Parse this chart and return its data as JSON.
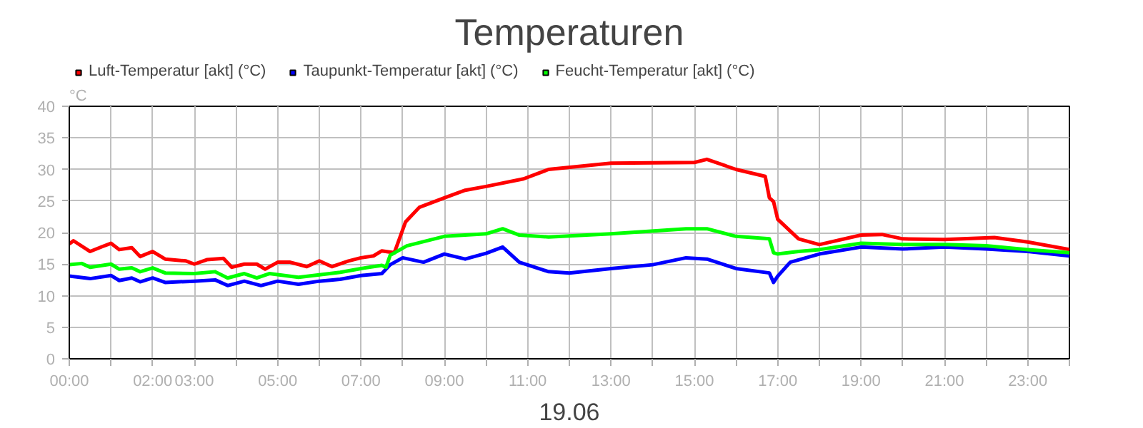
{
  "chart_data": {
    "type": "line",
    "title": "Temperaturen",
    "ylabel": "°C",
    "xlabel": "19.06",
    "xlim": [
      0,
      24
    ],
    "ylim": [
      0,
      40
    ],
    "xticks": [
      {
        "value": 0,
        "label": "00:00"
      },
      {
        "value": 1,
        "label": null
      },
      {
        "value": 2,
        "label": "02:00"
      },
      {
        "value": 3,
        "label": "03:00"
      },
      {
        "value": 4,
        "label": null
      },
      {
        "value": 5,
        "label": "05:00"
      },
      {
        "value": 6,
        "label": null
      },
      {
        "value": 7,
        "label": "07:00"
      },
      {
        "value": 8,
        "label": null
      },
      {
        "value": 9,
        "label": "09:00"
      },
      {
        "value": 10,
        "label": null
      },
      {
        "value": 11,
        "label": "11:00"
      },
      {
        "value": 12,
        "label": null
      },
      {
        "value": 13,
        "label": "13:00"
      },
      {
        "value": 14,
        "label": null
      },
      {
        "value": 15,
        "label": "15:00"
      },
      {
        "value": 16,
        "label": null
      },
      {
        "value": 17,
        "label": "17:00"
      },
      {
        "value": 18,
        "label": null
      },
      {
        "value": 19,
        "label": "19:00"
      },
      {
        "value": 20,
        "label": null
      },
      {
        "value": 21,
        "label": "21:00"
      },
      {
        "value": 22,
        "label": null
      },
      {
        "value": 23,
        "label": "23:00"
      },
      {
        "value": 24,
        "label": null
      }
    ],
    "yticks": [
      0,
      5,
      10,
      15,
      20,
      25,
      30,
      35,
      40
    ],
    "grid": true,
    "legend": "top left",
    "marker": "none",
    "line_style": "solid",
    "series": [
      {
        "name": "Luft-Temperatur [akt] (°C)",
        "color": "#ff0000",
        "x": [
          0,
          0.1,
          0.5,
          0.8,
          1.0,
          1.2,
          1.5,
          1.7,
          2.0,
          2.3,
          2.8,
          3.0,
          3.3,
          3.7,
          3.9,
          4.2,
          4.5,
          4.7,
          5.0,
          5.3,
          5.7,
          6.0,
          6.3,
          6.7,
          7.0,
          7.3,
          7.5,
          7.8,
          8.07,
          8.4,
          9.0,
          9.5,
          10.0,
          10.9,
          11.5,
          13.0,
          15.0,
          15.3,
          16.0,
          16.7,
          16.8,
          16.9,
          17.0,
          17.5,
          18.0,
          19.0,
          19.5,
          20.0,
          21.0,
          22.2,
          23.0,
          24.0
        ],
        "values": [
          18.2,
          18.7,
          17,
          17.8,
          18.3,
          17.3,
          17.6,
          16.2,
          17,
          15.8,
          15.5,
          15,
          15.7,
          15.9,
          14.5,
          15,
          15,
          14.2,
          15.3,
          15.3,
          14.6,
          15.5,
          14.6,
          15.5,
          16.0,
          16.3,
          17.1,
          16.8,
          21.7,
          24,
          25.5,
          26.7,
          27.3,
          28.5,
          30,
          31,
          31.1,
          31.6,
          30,
          28.9,
          25.5,
          24.9,
          22.1,
          19,
          18.1,
          19.6,
          19.7,
          19.0,
          18.9,
          19.2,
          18.5,
          17.3
        ]
      },
      {
        "name": "Taupunkt-Temperatur [akt] (°C)",
        "color": "#0000ff",
        "x": [
          0,
          0.5,
          1.0,
          1.2,
          1.5,
          1.7,
          2.0,
          2.3,
          3.0,
          3.5,
          3.8,
          4.2,
          4.6,
          5.0,
          5.5,
          6.0,
          6.5,
          7.0,
          7.5,
          7.7,
          8.0,
          8.5,
          9.0,
          9.5,
          10.0,
          10.4,
          10.8,
          11.5,
          12.0,
          13.0,
          14.0,
          14.8,
          15.3,
          16.0,
          16.8,
          16.9,
          17.0,
          17.3,
          18.0,
          19.0,
          20.0,
          21.0,
          22.0,
          23.0,
          24.0
        ],
        "values": [
          13.1,
          12.7,
          13.2,
          12.4,
          12.8,
          12.2,
          12.8,
          12.1,
          12.3,
          12.5,
          11.6,
          12.3,
          11.6,
          12.3,
          11.8,
          12.3,
          12.6,
          13.2,
          13.5,
          14.9,
          16.0,
          15.3,
          16.6,
          15.8,
          16.7,
          17.7,
          15.3,
          13.8,
          13.6,
          14.3,
          14.9,
          16.0,
          15.8,
          14.3,
          13.6,
          12.1,
          13.1,
          15.3,
          16.6,
          17.7,
          17.4,
          17.7,
          17.4,
          17.0,
          16.3
        ]
      },
      {
        "name": "Feucht-Temperatur [akt] (°C)",
        "color": "#00ff00",
        "x": [
          0,
          0.3,
          0.5,
          1.0,
          1.2,
          1.5,
          1.7,
          2.0,
          2.3,
          3.0,
          3.5,
          3.8,
          4.2,
          4.5,
          4.8,
          5.5,
          6.0,
          6.5,
          7.0,
          7.5,
          7.6,
          7.7,
          8.1,
          9.0,
          10.0,
          10.4,
          10.8,
          11.5,
          13.0,
          14.8,
          15.3,
          16.0,
          16.8,
          16.9,
          17.0,
          17.5,
          18.0,
          19.0,
          20.0,
          21.0,
          22.0,
          23.0,
          24.0
        ],
        "values": [
          14.9,
          15.1,
          14.5,
          15.0,
          14.2,
          14.4,
          13.8,
          14.4,
          13.6,
          13.5,
          13.8,
          12.8,
          13.5,
          12.8,
          13.5,
          12.9,
          13.3,
          13.7,
          14.3,
          14.8,
          14.5,
          16.4,
          17.9,
          19.4,
          19.8,
          20.6,
          19.6,
          19.3,
          19.8,
          20.6,
          20.6,
          19.4,
          19.0,
          16.8,
          16.6,
          17,
          17.3,
          18.3,
          18.1,
          18.1,
          17.9,
          17.3,
          16.8
        ]
      }
    ]
  }
}
